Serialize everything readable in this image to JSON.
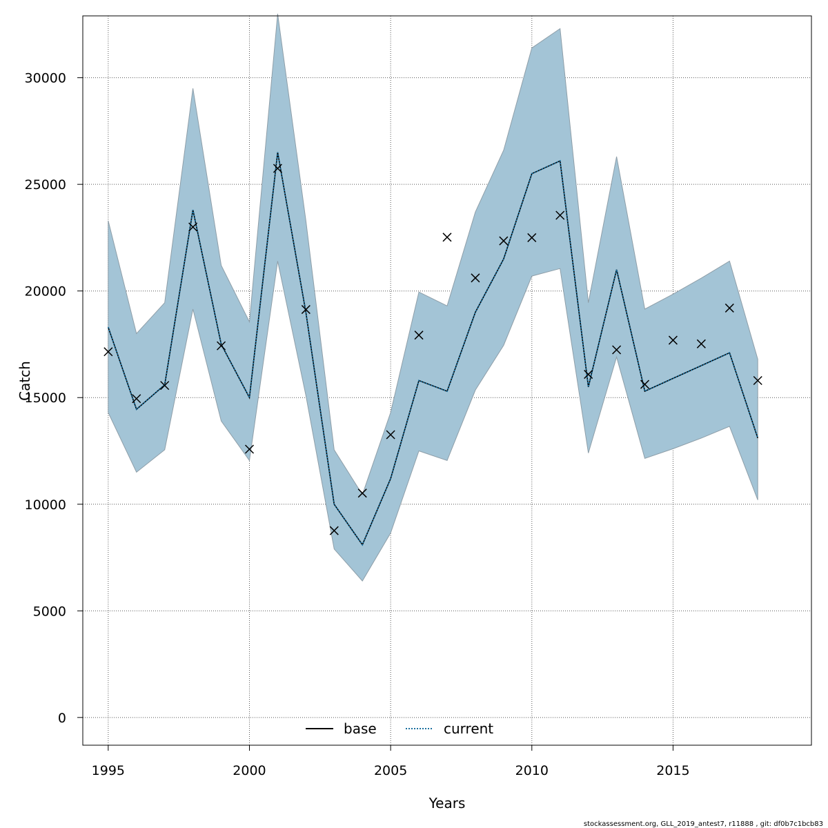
{
  "chart_data": {
    "type": "line",
    "xlabel": "Years",
    "ylabel": "Catch",
    "xlim": [
      1994.1,
      2019.9
    ],
    "ylim": [
      -1300,
      32900
    ],
    "x_ticks": [
      1995,
      2000,
      2005,
      2010,
      2015
    ],
    "y_ticks": [
      0,
      5000,
      10000,
      15000,
      20000,
      25000,
      30000
    ],
    "grid": true,
    "years": [
      1995,
      1996,
      1997,
      1998,
      1999,
      2000,
      2001,
      2002,
      2003,
      2004,
      2005,
      2006,
      2007,
      2008,
      2009,
      2010,
      2011,
      2012,
      2013,
      2014,
      2015,
      2016,
      2017,
      2018
    ],
    "observed": [
      17150,
      14950,
      15570,
      23000,
      17430,
      12580,
      25750,
      19130,
      8760,
      10520,
      13260,
      17930,
      22520,
      20610,
      22350,
      22500,
      23550,
      16090,
      17240,
      15620,
      17690,
      17520,
      19200,
      15800
    ],
    "series": [
      {
        "name": "base",
        "style": "solid",
        "color": "#000000",
        "values": [
          18300,
          14450,
          15600,
          23800,
          17500,
          15000,
          26500,
          19000,
          10000,
          8100,
          11200,
          15800,
          15300,
          19000,
          21500,
          25500,
          26100,
          15500,
          21000,
          15300,
          15900,
          16500,
          17100,
          13100
        ]
      },
      {
        "name": "current",
        "style": "dotted",
        "color": "#1a6f9e",
        "values": [
          18300,
          14450,
          15600,
          23800,
          17500,
          15000,
          26500,
          19000,
          10000,
          8100,
          11200,
          15800,
          15300,
          19000,
          21500,
          25500,
          26100,
          15500,
          21000,
          15300,
          15900,
          16500,
          17100,
          13100
        ]
      }
    ],
    "band": {
      "lower": [
        14300,
        11500,
        12550,
        19150,
        13900,
        12050,
        21400,
        15100,
        7900,
        6400,
        8650,
        12500,
        12050,
        15350,
        17450,
        20700,
        21050,
        12400,
        16900,
        12150,
        12600,
        13100,
        13650,
        10200
      ],
      "upper": [
        23300,
        18000,
        19450,
        29500,
        21200,
        18550,
        33000,
        23300,
        12550,
        10450,
        14300,
        19950,
        19300,
        23700,
        26600,
        31400,
        32300,
        19450,
        26300,
        19150,
        19850,
        20600,
        21400,
        16800
      ],
      "fill": "#a3c4d6",
      "edge": "#8e9ea8"
    },
    "legend": {
      "placement": "bottom-center",
      "entries": [
        {
          "label": "base",
          "style": "solid"
        },
        {
          "label": "current",
          "style": "dotted"
        }
      ]
    },
    "footer": "stockassessment.org, GLL_2019_antest7, r11888 , git: df0b7c1bcb83"
  }
}
